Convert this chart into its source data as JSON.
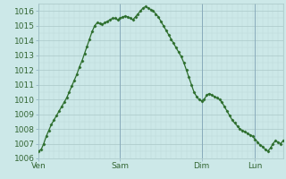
{
  "bg_color": "#cce8e8",
  "line_color": "#2d6e2d",
  "grid_major_color": "#aac8c8",
  "grid_minor_color": "#bcd8d8",
  "vline_color": "#88aabb",
  "tick_label_color": "#336633",
  "ylim": [
    1006,
    1016.5
  ],
  "yticks": [
    1006,
    1007,
    1008,
    1009,
    1010,
    1011,
    1012,
    1013,
    1014,
    1015,
    1016
  ],
  "day_labels": [
    "Ven",
    "Sam",
    "Dim",
    "Lun"
  ],
  "num_points": 97,
  "pressure_values": [
    1006.5,
    1006.6,
    1007.0,
    1007.5,
    1007.9,
    1008.3,
    1008.6,
    1008.9,
    1009.2,
    1009.5,
    1009.8,
    1010.1,
    1010.5,
    1010.9,
    1011.3,
    1011.7,
    1012.2,
    1012.6,
    1013.1,
    1013.6,
    1014.1,
    1014.6,
    1015.0,
    1015.2,
    1015.15,
    1015.1,
    1015.2,
    1015.3,
    1015.4,
    1015.5,
    1015.5,
    1015.4,
    1015.5,
    1015.6,
    1015.65,
    1015.6,
    1015.5,
    1015.4,
    1015.6,
    1015.8,
    1016.0,
    1016.2,
    1016.3,
    1016.2,
    1016.1,
    1016.0,
    1015.8,
    1015.6,
    1015.3,
    1015.0,
    1014.7,
    1014.4,
    1014.1,
    1013.8,
    1013.5,
    1013.2,
    1012.9,
    1012.5,
    1012.0,
    1011.5,
    1011.0,
    1010.5,
    1010.2,
    1010.0,
    1009.9,
    1010.0,
    1010.3,
    1010.4,
    1010.3,
    1010.2,
    1010.1,
    1010.0,
    1009.8,
    1009.5,
    1009.2,
    1008.9,
    1008.6,
    1008.4,
    1008.2,
    1008.0,
    1007.9,
    1007.8,
    1007.7,
    1007.6,
    1007.5,
    1007.3,
    1007.1,
    1006.9,
    1006.8,
    1006.6,
    1006.5,
    1006.7,
    1007.0,
    1007.2,
    1007.1,
    1007.0,
    1007.2
  ]
}
